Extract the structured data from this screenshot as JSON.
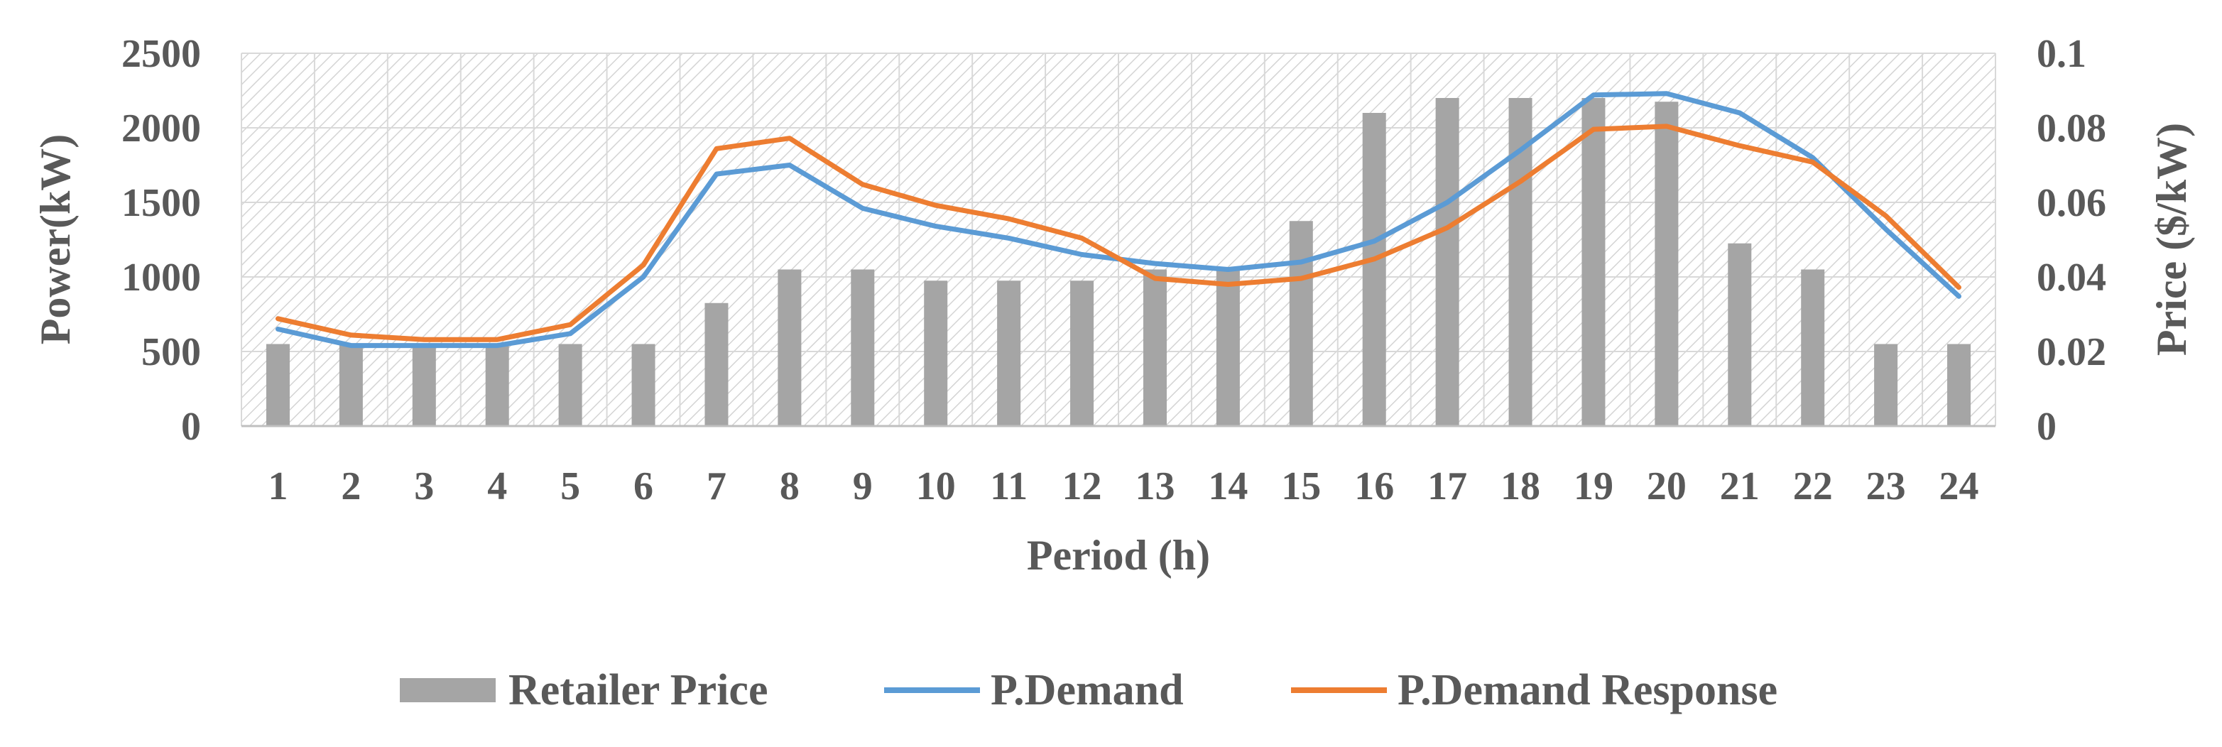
{
  "chart_data": {
    "type": "bar+line",
    "title": "",
    "xlabel": "Period (h)",
    "ylabel_left": "Power(kW)",
    "ylabel_right": "Price ($/kW)",
    "categories": [
      "1",
      "2",
      "3",
      "4",
      "5",
      "6",
      "7",
      "8",
      "9",
      "10",
      "11",
      "12",
      "13",
      "14",
      "15",
      "16",
      "17",
      "18",
      "19",
      "20",
      "21",
      "22",
      "23",
      "24"
    ],
    "ylim_left": [
      0,
      2500
    ],
    "ylim_right": [
      0,
      0.1
    ],
    "yticks_left": [
      "0",
      "500",
      "1000",
      "1500",
      "2000",
      "2500"
    ],
    "yticks_right": [
      "0",
      "0.02",
      "0.04",
      "0.06",
      "0.08",
      "0.1"
    ],
    "grid": true,
    "legend_position": "bottom",
    "series": [
      {
        "name": "Retailer Price",
        "kind": "bar",
        "axis": "right",
        "color": "#A5A5A5",
        "values": [
          0.022,
          0.022,
          0.022,
          0.022,
          0.022,
          0.022,
          0.033,
          0.042,
          0.042,
          0.039,
          0.039,
          0.039,
          0.042,
          0.042,
          0.055,
          0.084,
          0.088,
          0.088,
          0.088,
          0.087,
          0.049,
          0.042,
          0.022,
          0.022
        ]
      },
      {
        "name": "P.Demand",
        "kind": "line",
        "axis": "left",
        "color": "#5B9BD5",
        "values": [
          650,
          540,
          540,
          540,
          620,
          1000,
          1690,
          1750,
          1460,
          1340,
          1260,
          1150,
          1090,
          1050,
          1100,
          1240,
          1500,
          1850,
          2220,
          2230,
          2100,
          1800,
          1320,
          870
        ]
      },
      {
        "name": "P.Demand Response",
        "kind": "line",
        "axis": "left",
        "color": "#ED7D31",
        "values": [
          720,
          610,
          580,
          580,
          680,
          1080,
          1860,
          1930,
          1620,
          1480,
          1390,
          1260,
          990,
          950,
          990,
          1120,
          1330,
          1640,
          1990,
          2010,
          1880,
          1770,
          1410,
          930
        ]
      }
    ]
  }
}
